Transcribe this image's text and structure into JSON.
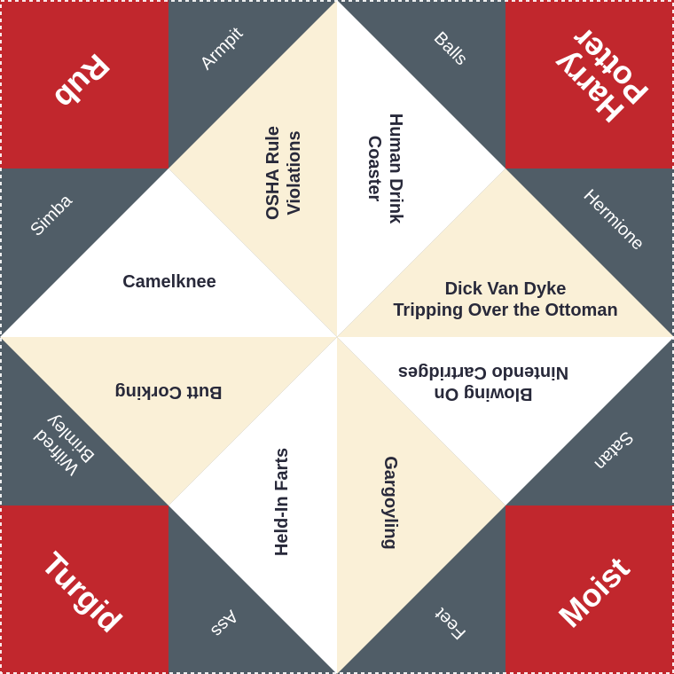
{
  "colors": {
    "red": "#c1272d",
    "slate": "#505d67",
    "cream": "#faf0d7",
    "white": "#ffffff",
    "ink": "#28293a"
  },
  "corners": {
    "top_left": "Rub",
    "top_right": "Harry\nPotter",
    "bottom_left": "Turgid",
    "bottom_right": "Moist"
  },
  "sides": {
    "top_left": "Armpit",
    "top_right": "Balls",
    "right_top": "Hermione",
    "right_bottom": "Satan",
    "bottom_right": "Feet",
    "bottom_left": "Ass",
    "left_bottom": "Wilfred\nBrimley",
    "left_top": "Simba"
  },
  "inner": {
    "top_left": "OSHA Rule\nViolations",
    "top_right": "Human Drink\nCoaster",
    "right_top": "Dick Van Dyke\nTripping Over the Ottoman",
    "right_bottom": "Blowing On\nNintendo Cartridges",
    "bottom_right": "Gargoyling",
    "bottom_left": "Held-In Farts",
    "left_bottom": "Butt Corking",
    "left_top": "Camelknee"
  }
}
